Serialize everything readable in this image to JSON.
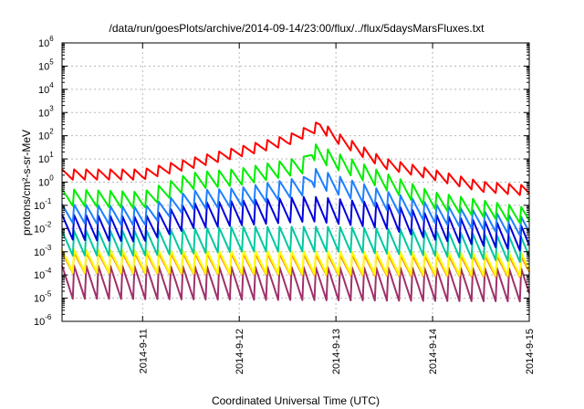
{
  "chart_data": {
    "type": "line",
    "title": "/data/run/goesPlots/archive/2014-09-14/23:00/flux/../flux/5daysMarsFluxes.txt",
    "xlabel": "Coordinated Universal Time (UTC)",
    "ylabel": "protons/cm²-s-sr-MeV",
    "y_scale": "log",
    "ylim": [
      1e-06,
      1000000.0
    ],
    "y_ticks": [
      {
        "base": "10",
        "exp": "-6"
      },
      {
        "base": "10",
        "exp": "-5"
      },
      {
        "base": "10",
        "exp": "-4"
      },
      {
        "base": "10",
        "exp": "-3"
      },
      {
        "base": "10",
        "exp": "-2"
      },
      {
        "base": "10",
        "exp": "-1"
      },
      {
        "base": "10",
        "exp": "0"
      },
      {
        "base": "10",
        "exp": "1"
      },
      {
        "base": "10",
        "exp": "2"
      },
      {
        "base": "10",
        "exp": "3"
      },
      {
        "base": "10",
        "exp": "4"
      },
      {
        "base": "10",
        "exp": "5"
      },
      {
        "base": "10",
        "exp": "6"
      }
    ],
    "xlim": [
      "2014-09-10 04:00",
      "2014-09-15 00:00"
    ],
    "x_ticks": [
      "2014-9-11",
      "2014-9-12",
      "2014-9-13",
      "2014-9-14",
      "2014-9-15"
    ],
    "grid": true,
    "legend": "none",
    "series": [
      {
        "color": "#ff0000",
        "values_at": [
          "2014-09-10 04:00",
          "2014-09-11 00:00",
          "2014-09-11 12:00",
          "2014-09-12 12:00",
          "2014-09-12 20:00",
          "2014-09-13 00:00",
          "2014-09-13 12:00",
          "2014-09-14 00:00",
          "2014-09-14 12:00",
          "2014-09-15 00:00"
        ],
        "values": [
          2,
          2,
          6,
          60,
          250,
          80,
          6,
          2,
          0.6,
          0.4
        ],
        "sawtooth_amp": 0.25
      },
      {
        "color": "#00ee00",
        "values_at": [
          "2014-09-10 04:00",
          "2014-09-11 00:00",
          "2014-09-11 12:00",
          "2014-09-12 00:00",
          "2014-09-12 16:00",
          "2014-09-12 18:00",
          "2014-09-13 12:00",
          "2014-09-14 00:00",
          "2014-09-15 00:00"
        ],
        "values": [
          0.2,
          0.15,
          1,
          1.5,
          5,
          20,
          1,
          0.15,
          0.03
        ],
        "sawtooth_amp": 0.4
      },
      {
        "color": "#1e7fff",
        "values_at": [
          "2014-09-10 04:00",
          "2014-09-11 00:00",
          "2014-09-11 12:00",
          "2014-09-12 00:00",
          "2014-09-12 16:00",
          "2014-09-12 18:00",
          "2014-09-13 12:00",
          "2014-09-14 00:00",
          "2014-09-15 00:00"
        ],
        "values": [
          0.04,
          0.03,
          0.15,
          0.2,
          0.6,
          1.5,
          0.15,
          0.04,
          0.01
        ],
        "sawtooth_amp": 0.45
      },
      {
        "color": "#0000dd",
        "values_at": [
          "2014-09-10 04:00",
          "2014-09-11 00:00",
          "2014-09-11 12:00",
          "2014-09-12 00:00",
          "2014-09-12 18:00",
          "2014-09-13 12:00",
          "2014-09-14 00:00",
          "2014-09-15 00:00"
        ],
        "values": [
          0.01,
          0.008,
          0.03,
          0.04,
          0.06,
          0.03,
          0.01,
          0.003
        ],
        "sawtooth_amp": 0.6
      },
      {
        "color": "#00c8a0",
        "values_at": [
          "2014-09-10 04:00",
          "2014-09-11 00:00",
          "2014-09-12 00:00",
          "2014-09-13 00:00",
          "2014-09-14 00:00",
          "2014-09-15 00:00"
        ],
        "values": [
          0.002,
          0.002,
          0.003,
          0.003,
          0.002,
          0.001
        ],
        "sawtooth_amp": 0.6
      },
      {
        "color": "#ffff00",
        "values_at": [
          "2014-09-10 04:00",
          "2014-09-15 00:00"
        ],
        "values": [
          0.00035,
          0.00025
        ],
        "sawtooth_amp": 0.55
      },
      {
        "color": "#ff8c00",
        "values_at": [
          "2014-09-10 04:00",
          "2014-09-15 00:00"
        ],
        "values": [
          0.0003,
          0.0002
        ],
        "sawtooth_amp": 0.5
      },
      {
        "color": "#a0306a",
        "values_at": [
          "2014-09-10 04:00",
          "2014-09-15 00:00"
        ],
        "values": [
          4e-05,
          3e-05
        ],
        "sawtooth_amp": 0.8
      }
    ]
  }
}
